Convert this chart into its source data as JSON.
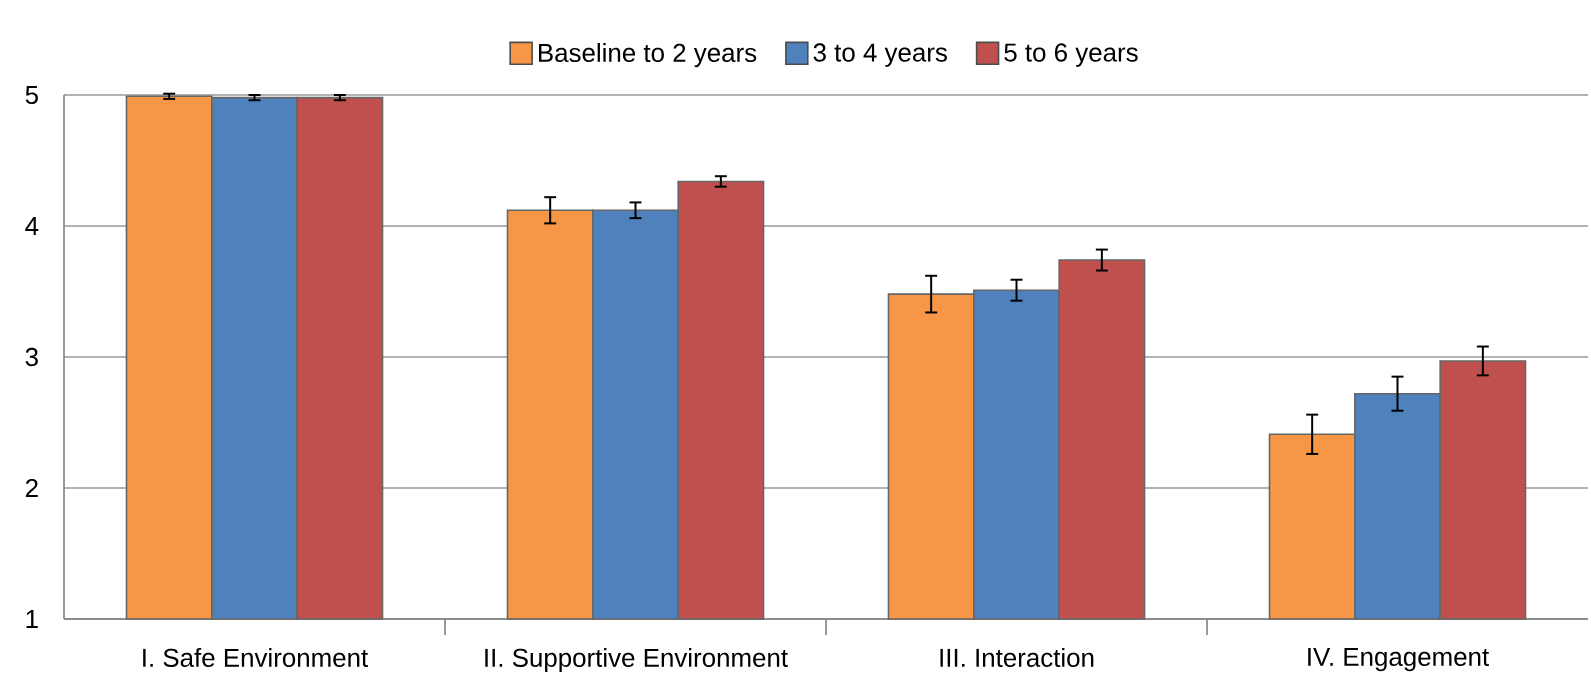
{
  "chart_data": {
    "type": "bar",
    "categories": [
      "I. Safe Environment",
      "II. Supportive Environment",
      "III. Interaction",
      "IV. Engagement"
    ],
    "series": [
      {
        "name": "Baseline to 2 years",
        "color": "#f79646",
        "values": [
          4.99,
          4.12,
          3.48,
          2.41
        ],
        "errors": [
          0.02,
          0.1,
          0.14,
          0.15
        ]
      },
      {
        "name": "3 to 4 years",
        "color": "#4f81bd",
        "values": [
          4.98,
          4.12,
          3.51,
          2.72
        ],
        "errors": [
          0.02,
          0.06,
          0.08,
          0.13
        ]
      },
      {
        "name": "5 to 6 years",
        "color": "#c0504d",
        "values": [
          4.98,
          4.34,
          3.74,
          2.97
        ],
        "errors": [
          0.02,
          0.04,
          0.08,
          0.11
        ]
      }
    ],
    "ylim": [
      1,
      5
    ],
    "yticks": [
      1,
      2,
      3,
      4,
      5
    ],
    "grid": "y",
    "legend": "top"
  }
}
